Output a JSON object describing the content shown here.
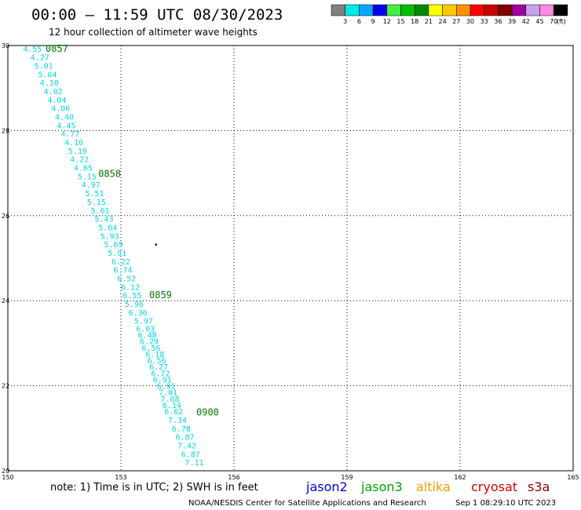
{
  "header": {
    "title": "00:00 – 11:59 UTC 08/30/2023",
    "subtitle": "12 hour collection of altimeter wave heights"
  },
  "legend": {
    "unit": "(ft)",
    "bins": [
      {
        "label": "3",
        "color": "#808080"
      },
      {
        "label": "6",
        "color": "#00e8e8"
      },
      {
        "label": "9",
        "color": "#00a8ff"
      },
      {
        "label": "12",
        "color": "#0000ee"
      },
      {
        "label": "15",
        "color": "#44ee44"
      },
      {
        "label": "18",
        "color": "#00c000"
      },
      {
        "label": "21",
        "color": "#008800"
      },
      {
        "label": "24",
        "color": "#ffff00"
      },
      {
        "label": "27",
        "color": "#ffc800"
      },
      {
        "label": "30",
        "color": "#ff9000"
      },
      {
        "label": "33",
        "color": "#ff0000"
      },
      {
        "label": "36",
        "color": "#c80000"
      },
      {
        "label": "39",
        "color": "#800000"
      },
      {
        "label": "42",
        "color": "#a000a0"
      },
      {
        "label": "45",
        "color": "#c8a0f0"
      },
      {
        "label": "70",
        "color": "#ff88e0"
      },
      {
        "label": "",
        "color": "#000000"
      }
    ]
  },
  "chart_data": {
    "type": "scatter",
    "xlim": [
      150,
      165
    ],
    "ylim": [
      20,
      30
    ],
    "x_ticks": [
      "150",
      "153",
      "156",
      "159",
      "162",
      "165"
    ],
    "y_ticks": [
      "20",
      "22",
      "24",
      "26",
      "28",
      "30"
    ],
    "grid": true,
    "points": [
      {
        "x": 150.4,
        "y": 29.93,
        "label": "4.55"
      },
      {
        "x": 150.6,
        "y": 29.73,
        "label": "4.27"
      },
      {
        "x": 150.7,
        "y": 29.53,
        "label": "5.01"
      },
      {
        "x": 150.8,
        "y": 29.33,
        "label": "5.04"
      },
      {
        "x": 150.85,
        "y": 29.13,
        "label": "4.10"
      },
      {
        "x": 150.95,
        "y": 28.93,
        "label": "4.02"
      },
      {
        "x": 151.05,
        "y": 28.73,
        "label": "4.04"
      },
      {
        "x": 151.15,
        "y": 28.53,
        "label": "4.06"
      },
      {
        "x": 151.25,
        "y": 28.33,
        "label": "4.40"
      },
      {
        "x": 151.3,
        "y": 28.13,
        "label": "4.45"
      },
      {
        "x": 151.4,
        "y": 27.93,
        "label": "4.77"
      },
      {
        "x": 151.5,
        "y": 27.73,
        "label": "4.10"
      },
      {
        "x": 151.6,
        "y": 27.53,
        "label": "5.19"
      },
      {
        "x": 151.65,
        "y": 27.33,
        "label": "4.22"
      },
      {
        "x": 151.75,
        "y": 27.13,
        "label": "4.65"
      },
      {
        "x": 151.85,
        "y": 26.93,
        "label": "5.15"
      },
      {
        "x": 151.95,
        "y": 26.73,
        "label": "4.97"
      },
      {
        "x": 152.05,
        "y": 26.53,
        "label": "5.51"
      },
      {
        "x": 152.1,
        "y": 26.33,
        "label": "5.15"
      },
      {
        "x": 152.2,
        "y": 26.13,
        "label": "5.61"
      },
      {
        "x": 152.3,
        "y": 25.93,
        "label": "5.43"
      },
      {
        "x": 152.4,
        "y": 25.73,
        "label": "5.04"
      },
      {
        "x": 152.45,
        "y": 25.53,
        "label": "5.93"
      },
      {
        "x": 152.55,
        "y": 25.33,
        "label": "5.69"
      },
      {
        "x": 152.65,
        "y": 25.13,
        "label": "5.91"
      },
      {
        "x": 152.75,
        "y": 24.93,
        "label": "6.22"
      },
      {
        "x": 152.8,
        "y": 24.73,
        "label": "6.74"
      },
      {
        "x": 152.9,
        "y": 24.53,
        "label": "6.52"
      },
      {
        "x": 153.0,
        "y": 24.33,
        "label": "6.12"
      },
      {
        "x": 153.05,
        "y": 24.13,
        "label": "6.55"
      },
      {
        "x": 153.1,
        "y": 23.93,
        "label": "5.96"
      },
      {
        "x": 153.2,
        "y": 23.73,
        "label": "6.36"
      },
      {
        "x": 153.35,
        "y": 23.53,
        "label": "5.97"
      },
      {
        "x": 153.4,
        "y": 23.35,
        "label": "6.03"
      },
      {
        "x": 153.45,
        "y": 23.2,
        "label": "6.48"
      },
      {
        "x": 153.5,
        "y": 23.05,
        "label": "6.29"
      },
      {
        "x": 153.55,
        "y": 22.9,
        "label": "6.56"
      },
      {
        "x": 153.65,
        "y": 22.75,
        "label": "6.18"
      },
      {
        "x": 153.7,
        "y": 22.6,
        "label": "6.56"
      },
      {
        "x": 153.75,
        "y": 22.45,
        "label": "6.27"
      },
      {
        "x": 153.8,
        "y": 22.3,
        "label": "6.72"
      },
      {
        "x": 153.85,
        "y": 22.15,
        "label": "6.91"
      },
      {
        "x": 153.95,
        "y": 22.0,
        "label": "6.91"
      },
      {
        "x": 154.0,
        "y": 21.85,
        "label": "7.01"
      },
      {
        "x": 154.05,
        "y": 21.7,
        "label": "7.08"
      },
      {
        "x": 154.1,
        "y": 21.55,
        "label": "6.14"
      },
      {
        "x": 154.15,
        "y": 21.4,
        "label": "6.62"
      },
      {
        "x": 154.25,
        "y": 21.2,
        "label": "7.34"
      },
      {
        "x": 154.35,
        "y": 21.0,
        "label": "6.78"
      },
      {
        "x": 154.45,
        "y": 20.8,
        "label": "6.87"
      },
      {
        "x": 154.5,
        "y": 20.6,
        "label": "7.42"
      },
      {
        "x": 154.6,
        "y": 20.4,
        "label": "6.87"
      },
      {
        "x": 154.7,
        "y": 20.2,
        "label": "7.11"
      }
    ],
    "time_marks": [
      {
        "x": 151.0,
        "y": 29.93,
        "label": "0857"
      },
      {
        "x": 152.4,
        "y": 26.98,
        "label": "0858"
      },
      {
        "x": 153.75,
        "y": 24.13,
        "label": "0859"
      },
      {
        "x": 155.0,
        "y": 21.37,
        "label": "0900"
      }
    ],
    "other_marks": [
      {
        "x": 153.93,
        "y": 25.32
      }
    ]
  },
  "footer": {
    "note": "note: 1) Time is in UTC; 2) SWH is in feet",
    "satellites": [
      {
        "name": "jason2",
        "color": "#0000dd"
      },
      {
        "name": "jason3",
        "color": "#00a000"
      },
      {
        "name": "altika",
        "color": "#ff9900"
      },
      {
        "name": "cryosat",
        "color": "#dd0000"
      },
      {
        "name": "s3a",
        "color": "#880000"
      }
    ],
    "credit": "NOAA/NESDIS Center for Satellite Applications and Research",
    "timestamp": "Sep  1 08:29:10 UTC 2023"
  }
}
